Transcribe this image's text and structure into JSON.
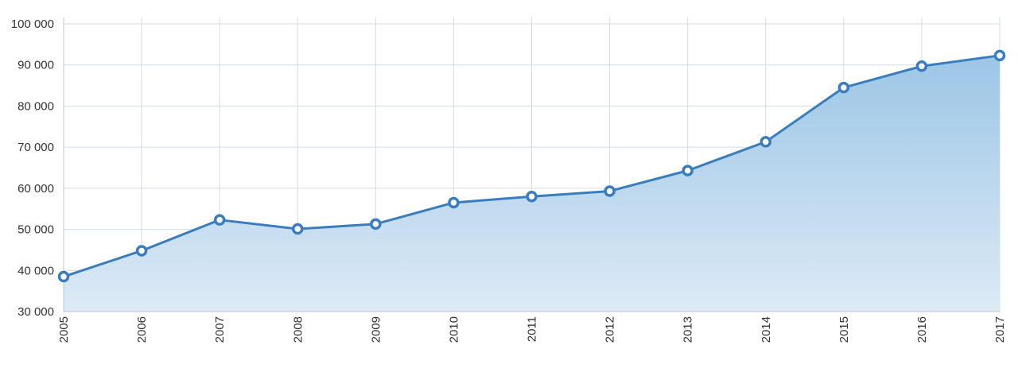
{
  "chart_data": {
    "type": "area",
    "title": "",
    "xlabel": "",
    "ylabel": "",
    "categories": [
      "2005",
      "2006",
      "2007",
      "2008",
      "2009",
      "2010",
      "2011",
      "2012",
      "2013",
      "2014",
      "2015",
      "2016",
      "2017"
    ],
    "values": [
      38500,
      44800,
      52300,
      50100,
      51300,
      56500,
      58000,
      59300,
      64300,
      71300,
      84500,
      89700,
      92300
    ],
    "ylim": [
      30000,
      100000
    ],
    "yticks": [
      30000,
      40000,
      50000,
      60000,
      70000,
      80000,
      90000,
      100000
    ],
    "ytick_labels": [
      "30 000",
      "40 000",
      "50 000",
      "60 000",
      "70 000",
      "80 000",
      "90 000",
      "100 000"
    ],
    "grid": true,
    "legend": "none",
    "colors": {
      "line": "#3a7dbf",
      "fill_top": "#9cc6e6",
      "fill_bottom": "#ddeaf6",
      "grid": "#d3dde6"
    }
  }
}
